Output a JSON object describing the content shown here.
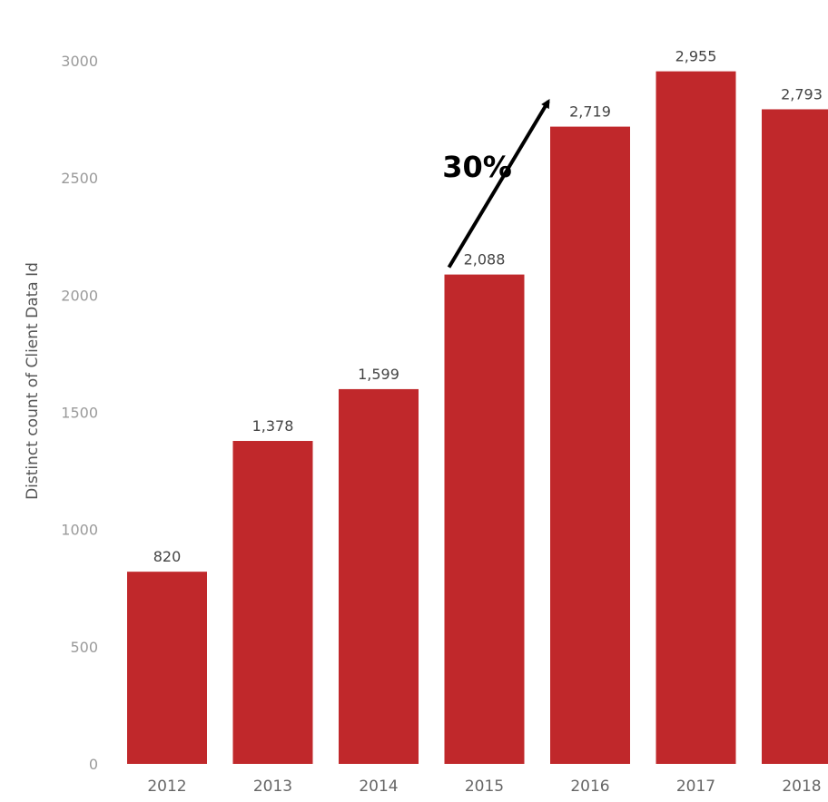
{
  "chart_data": {
    "type": "bar",
    "categories": [
      "2012",
      "2013",
      "2014",
      "2015",
      "2016",
      "2017",
      "2018"
    ],
    "values": [
      820,
      1378,
      1599,
      2088,
      2719,
      2955,
      2793
    ],
    "value_labels": [
      "820",
      "1,378",
      "1,599",
      "2,088",
      "2,719",
      "2,955",
      "2,793"
    ],
    "ylabel": "Distinct count of Client Data Id",
    "ylim": [
      0,
      3000
    ],
    "yticks": [
      0,
      500,
      1000,
      1500,
      2000,
      2500,
      3000
    ],
    "ytick_labels": [
      "0",
      "500",
      "1000",
      "1500",
      "2000",
      "2500",
      "3000"
    ],
    "grid": false,
    "bar_color": "#c0282b",
    "annotations": [
      {
        "type": "arrow",
        "from_category": "2015",
        "to_category": "2016",
        "text": "30%"
      }
    ]
  }
}
